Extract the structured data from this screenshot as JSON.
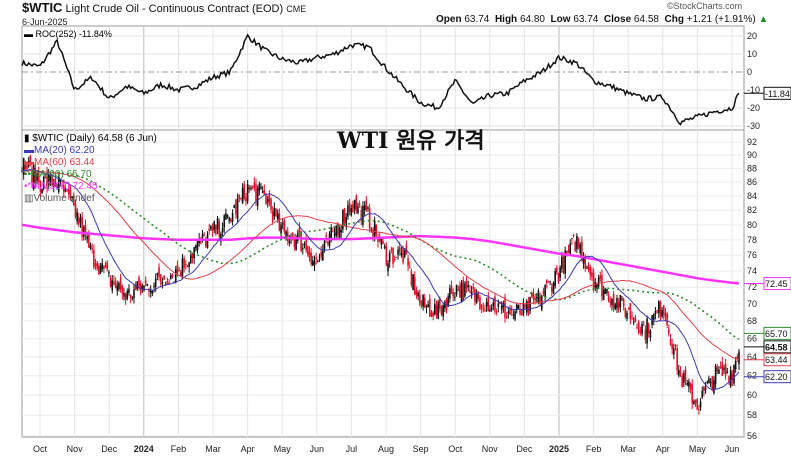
{
  "header": {
    "symbol": "$WTIC",
    "name": "Light Crude Oil - Continuous Contract (EOD)",
    "exchange": "CME",
    "date": "6-Jun-2025",
    "copyright": "©StockCharts.com",
    "open_label": "Open",
    "open": "63.74",
    "high_label": "High",
    "high": "64.80",
    "low_label": "Low",
    "low": "63.74",
    "close_label": "Close",
    "close": "64.58",
    "chg_label": "Chg",
    "chg": "+1.21 (+1.91%)"
  },
  "overlay_title": "WTI 원유 가격",
  "roc_legend": "ROC(252) -11.84%",
  "price_legend": {
    "main": "$WTIC (Daily) 64.58 (6 Jun)",
    "ma20": "MA(20) 62.20",
    "ma60": "MA(60) 63.44",
    "ma90": "MA(90) 65.70",
    "ma300": "MA(300) 72.45",
    "volume": "Volume undef"
  },
  "colors": {
    "ma20": "#3b3bb3",
    "ma60": "#e0404a",
    "ma90": "#2e8b2e",
    "ma300": "#ff33ff",
    "down": "#e0102a",
    "up": "#111111"
  },
  "chart_data": [
    {
      "type": "line",
      "title": "ROC(252)",
      "ylim": [
        -35,
        25
      ],
      "yticks": [
        20,
        10,
        0,
        -10,
        -20,
        -30
      ],
      "last_value_tag": "-11.84",
      "values": [
        5,
        3,
        17,
        -10,
        -3,
        -15,
        -8,
        -12,
        -7,
        -10,
        -8,
        -3,
        0,
        20,
        12,
        7,
        5,
        8,
        10,
        15,
        14,
        2,
        -8,
        -17,
        -20,
        -5,
        -18,
        -13,
        -12,
        -5,
        0,
        8,
        5,
        -5,
        -8,
        -12,
        -15,
        -14,
        -28,
        -25,
        -22,
        -20,
        -11.84
      ]
    },
    {
      "type": "candlestick",
      "title": "$WTIC (Daily)",
      "scale": "log",
      "ylim": [
        55,
        93
      ],
      "yticks": [
        92,
        90,
        88,
        86,
        84,
        82,
        80,
        78,
        76,
        74,
        72,
        70,
        68,
        66,
        64,
        62,
        60,
        58,
        56
      ],
      "xticks": [
        "Oct",
        "Nov",
        "Dec",
        "2024",
        "Feb",
        "Mar",
        "Apr",
        "May",
        "Jun",
        "Jul",
        "Aug",
        "Sep",
        "Oct",
        "Nov",
        "Dec",
        "2025",
        "Feb",
        "Mar",
        "Apr",
        "May",
        "Jun"
      ],
      "close_semimonthly": [
        89,
        86,
        86,
        82,
        76,
        73,
        71,
        72,
        73,
        74,
        77,
        79,
        81,
        85,
        84,
        79,
        78,
        75,
        79,
        83,
        81,
        76,
        76,
        70,
        69,
        72,
        71,
        70,
        69,
        69,
        71,
        74,
        78,
        73,
        71,
        69,
        67,
        70,
        62,
        59,
        62,
        62.5,
        64.58
      ],
      "ma300_semimonthly": [
        80,
        79.6,
        79.3,
        79,
        78.8,
        78.6,
        78.4,
        78.2,
        78.1,
        78,
        78,
        78,
        78,
        78.2,
        78.3,
        78.3,
        78.2,
        78.1,
        78.1,
        78.1,
        78.2,
        78.3,
        78.4,
        78.5,
        78.4,
        78.3,
        78.1,
        77.8,
        77.4,
        77,
        76.6,
        76.2,
        75.9,
        75.5,
        75.1,
        74.7,
        74.3,
        73.9,
        73.5,
        73.1,
        72.8,
        72.55,
        72.45
      ],
      "tags": {
        "ma90": "65.70",
        "close": "64.58",
        "ma60": "63.44",
        "ma20": "62.20",
        "ma300": "72.45"
      }
    }
  ]
}
